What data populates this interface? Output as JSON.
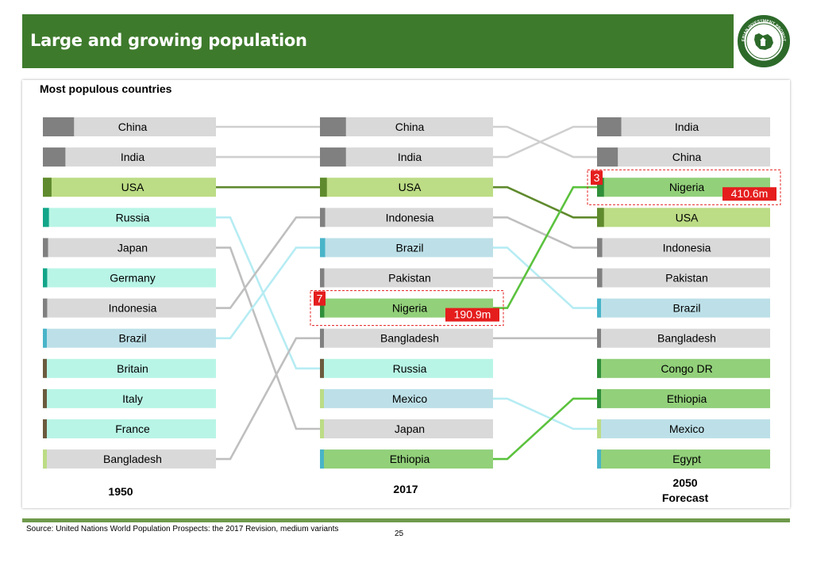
{
  "header": {
    "title": "Large and growing population"
  },
  "subtitle": "Most populous countries",
  "colors": {
    "header_bg": "#3e7a2c",
    "grey_bar": "#d9d9d9",
    "dark_grey": "#808080",
    "light_green": "#bcdc85",
    "olive": "#5f8a2d",
    "mint": "#b8f5e6",
    "teal": "#12a589",
    "light_blue": "#bde0e8",
    "blue": "#49b4c8",
    "green": "#92d07a",
    "dark_green": "#2f8f3a",
    "brown": "#6b5a3d",
    "highlight_red": "#e51d1d",
    "green_line": "#5bc23e",
    "cyan_line": "#b6ecf3"
  },
  "columns": [
    {
      "year_label": "1950",
      "rows": [
        {
          "name": "China",
          "fill": "#d9d9d9",
          "marker": "#808080",
          "marker_fraction": 0.18
        },
        {
          "name": "India",
          "fill": "#d9d9d9",
          "marker": "#808080",
          "marker_fraction": 0.13
        },
        {
          "name": "USA",
          "fill": "#bcdc85",
          "marker": "#5f8a2d",
          "marker_fraction": 0.05
        },
        {
          "name": "Russia",
          "fill": "#b8f5e6",
          "marker": "#12a589",
          "marker_fraction": 0.035
        },
        {
          "name": "Japan",
          "fill": "#d9d9d9",
          "marker": "#808080",
          "marker_fraction": 0.03
        },
        {
          "name": "Germany",
          "fill": "#b8f5e6",
          "marker": "#12a589",
          "marker_fraction": 0.025
        },
        {
          "name": "Indonesia",
          "fill": "#d9d9d9",
          "marker": "#808080",
          "marker_fraction": 0.025
        },
        {
          "name": "Brazil",
          "fill": "#bde0e8",
          "marker": "#49b4c8",
          "marker_fraction": 0.02
        },
        {
          "name": "Britain",
          "fill": "#b8f5e6",
          "marker": "#6b5a3d",
          "marker_fraction": 0.02
        },
        {
          "name": "Italy",
          "fill": "#b8f5e6",
          "marker": "#6b5a3d",
          "marker_fraction": 0.018
        },
        {
          "name": "France",
          "fill": "#b8f5e6",
          "marker": "#6b5a3d",
          "marker_fraction": 0.015
        },
        {
          "name": "Bangladesh",
          "fill": "#d9d9d9",
          "marker": "#bcdc85",
          "marker_fraction": 0.015
        }
      ]
    },
    {
      "year_label": "2017",
      "rows": [
        {
          "name": "China",
          "fill": "#d9d9d9",
          "marker": "#808080",
          "marker_fraction": 0.15
        },
        {
          "name": "India",
          "fill": "#d9d9d9",
          "marker": "#808080",
          "marker_fraction": 0.15
        },
        {
          "name": "USA",
          "fill": "#bcdc85",
          "marker": "#5f8a2d",
          "marker_fraction": 0.04
        },
        {
          "name": "Indonesia",
          "fill": "#d9d9d9",
          "marker": "#808080",
          "marker_fraction": 0.03
        },
        {
          "name": "Brazil",
          "fill": "#bde0e8",
          "marker": "#49b4c8",
          "marker_fraction": 0.03
        },
        {
          "name": "Pakistan",
          "fill": "#d9d9d9",
          "marker": "#808080",
          "marker_fraction": 0.025
        },
        {
          "name": "Nigeria",
          "fill": "#92d07a",
          "marker": "#2f8f3a",
          "marker_fraction": 0.025,
          "rank_badge": "7",
          "value_badge": "190.9m"
        },
        {
          "name": "Bangladesh",
          "fill": "#d9d9d9",
          "marker": "#808080",
          "marker_fraction": 0.02
        },
        {
          "name": "Russia",
          "fill": "#b8f5e6",
          "marker": "#6b5a3d",
          "marker_fraction": 0.02
        },
        {
          "name": "Mexico",
          "fill": "#bde0e8",
          "marker": "#bcdc85",
          "marker_fraction": 0.015
        },
        {
          "name": "Japan",
          "fill": "#d9d9d9",
          "marker": "#bcdc85",
          "marker_fraction": 0.015
        },
        {
          "name": "Ethiopia",
          "fill": "#92d07a",
          "marker": "#49b4c8",
          "marker_fraction": 0.015
        }
      ]
    },
    {
      "year_label": "2050\nForecast",
      "rows": [
        {
          "name": "India",
          "fill": "#d9d9d9",
          "marker": "#808080",
          "marker_fraction": 0.14
        },
        {
          "name": "China",
          "fill": "#d9d9d9",
          "marker": "#808080",
          "marker_fraction": 0.12
        },
        {
          "name": "Nigeria",
          "fill": "#92d07a",
          "marker": "#2f8f3a",
          "marker_fraction": 0.04,
          "rank_badge": "3",
          "value_badge": "410.6m"
        },
        {
          "name": "USA",
          "fill": "#bcdc85",
          "marker": "#5f8a2d",
          "marker_fraction": 0.04
        },
        {
          "name": "Indonesia",
          "fill": "#d9d9d9",
          "marker": "#808080",
          "marker_fraction": 0.03
        },
        {
          "name": "Pakistan",
          "fill": "#d9d9d9",
          "marker": "#808080",
          "marker_fraction": 0.03
        },
        {
          "name": "Brazil",
          "fill": "#bde0e8",
          "marker": "#49b4c8",
          "marker_fraction": 0.02
        },
        {
          "name": "Bangladesh",
          "fill": "#d9d9d9",
          "marker": "#808080",
          "marker_fraction": 0.02
        },
        {
          "name": "Congo DR",
          "fill": "#92d07a",
          "marker": "#2f8f3a",
          "marker_fraction": 0.02
        },
        {
          "name": "Ethiopia",
          "fill": "#92d07a",
          "marker": "#2f8f3a",
          "marker_fraction": 0.02
        },
        {
          "name": "Mexico",
          "fill": "#bde0e8",
          "marker": "#bcdc85",
          "marker_fraction": 0.015
        },
        {
          "name": "Egypt",
          "fill": "#92d07a",
          "marker": "#49b4c8",
          "marker_fraction": 0.015
        }
      ]
    }
  ],
  "connections": [
    {
      "from": [
        0,
        0
      ],
      "to": [
        1,
        0
      ],
      "color": "#cfcfcf"
    },
    {
      "from": [
        1,
        0
      ],
      "to": [
        2,
        1
      ],
      "color": "#cfcfcf"
    },
    {
      "from": [
        0,
        1
      ],
      "to": [
        1,
        1
      ],
      "color": "#cfcfcf"
    },
    {
      "from": [
        1,
        1
      ],
      "to": [
        2,
        0
      ],
      "color": "#cfcfcf"
    },
    {
      "from": [
        0,
        2
      ],
      "to": [
        1,
        2
      ],
      "color": "#5f8a2d"
    },
    {
      "from": [
        1,
        2
      ],
      "to": [
        2,
        3
      ],
      "color": "#5f8a2d"
    },
    {
      "from": [
        0,
        3
      ],
      "to": [
        1,
        8
      ],
      "color": "#b6ecf3"
    },
    {
      "from": [
        0,
        4
      ],
      "to": [
        1,
        10
      ],
      "color": "#bfbfbf"
    },
    {
      "from": [
        0,
        6
      ],
      "to": [
        1,
        3
      ],
      "color": "#bfbfbf"
    },
    {
      "from": [
        1,
        3
      ],
      "to": [
        2,
        4
      ],
      "color": "#bfbfbf"
    },
    {
      "from": [
        0,
        7
      ],
      "to": [
        1,
        4
      ],
      "color": "#b6ecf3"
    },
    {
      "from": [
        1,
        4
      ],
      "to": [
        2,
        6
      ],
      "color": "#b6ecf3"
    },
    {
      "from": [
        0,
        11
      ],
      "to": [
        1,
        7
      ],
      "color": "#bfbfbf"
    },
    {
      "from": [
        1,
        7
      ],
      "to": [
        2,
        7
      ],
      "color": "#bfbfbf"
    },
    {
      "from": [
        1,
        5
      ],
      "to": [
        2,
        5
      ],
      "color": "#bfbfbf"
    },
    {
      "from": [
        1,
        6
      ],
      "to": [
        2,
        2
      ],
      "color": "#5bc23e"
    },
    {
      "from": [
        1,
        9
      ],
      "to": [
        2,
        10
      ],
      "color": "#b6ecf3"
    },
    {
      "from": [
        1,
        11
      ],
      "to": [
        2,
        9
      ],
      "color": "#5bc23e"
    }
  ],
  "logo": {
    "ring_text_top": "NIGERIAN INVESTMENT PROMOTION",
    "ring_text_bottom": "COMMISSION"
  },
  "footer": {
    "source": "Source: United Nations World Population Prospects: the 2017 Revision, medium variants",
    "page_number": "25"
  }
}
